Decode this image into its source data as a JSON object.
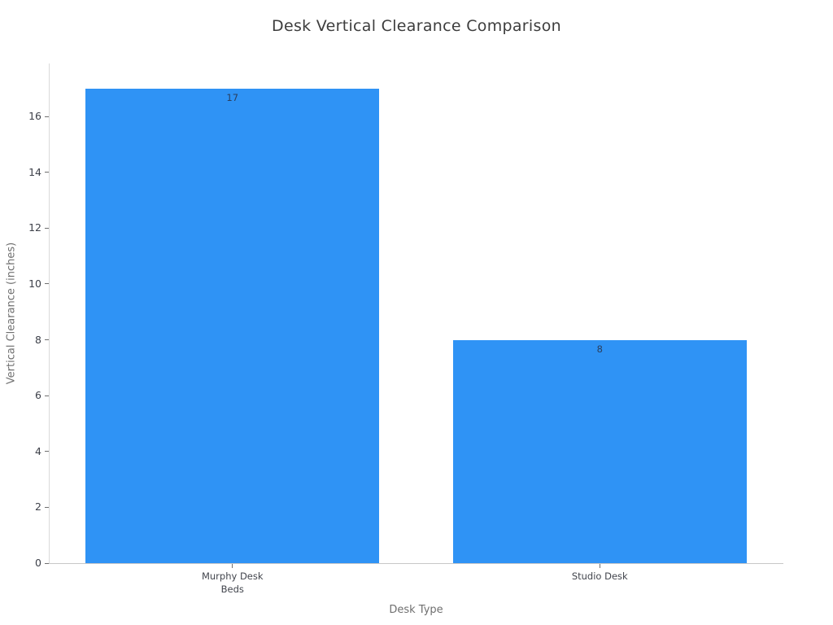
{
  "title": "Desk Vertical Clearance Comparison",
  "chart_data": {
    "type": "bar",
    "categories": [
      "Murphy Desk\nBeds",
      "Studio Desk"
    ],
    "values": [
      17,
      8
    ],
    "value_labels": [
      "17",
      "8"
    ],
    "title": "Desk Vertical Clearance Comparison",
    "xlabel": "Desk Type",
    "ylabel": "Vertical Clearance (inches)",
    "ylim": [
      0,
      17.9
    ],
    "yticks": [
      0,
      2,
      4,
      6,
      8,
      10,
      12,
      14,
      16
    ],
    "bargap": 0.2,
    "legend": "none",
    "grid": false,
    "colors": {
      "bar_fill": "#2f93f5",
      "bar_value_label": "#2a3f5f",
      "tick_label": "#3d4049",
      "axis_title": "#6f6f6f",
      "chart_title": "#3d3d3d",
      "spine": "#d0d0d0",
      "background": "#ffffff"
    }
  }
}
